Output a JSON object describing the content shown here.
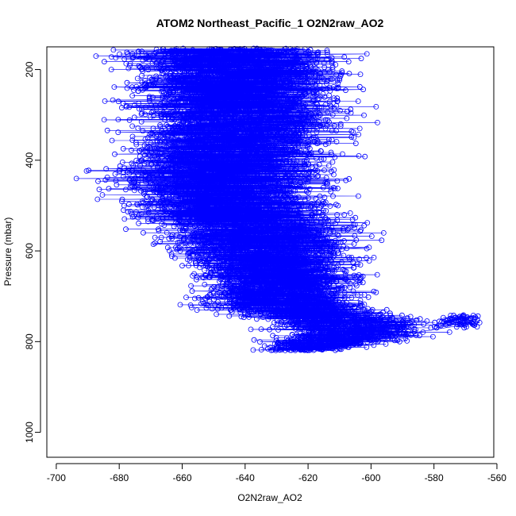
{
  "chart_data": {
    "type": "scatter",
    "title": "ATOM2 Northeast_Pacific_1 O2N2raw_AO2",
    "xlabel": "O2N2raw_AO2",
    "ylabel": "Pressure (mbar)",
    "xlim": [
      -703,
      -561
    ],
    "ylim": [
      1055,
      150
    ],
    "y_reversed": true,
    "x_ticks": [
      "-700",
      "-680",
      "-660",
      "-640",
      "-620",
      "-600",
      "-580",
      "-560"
    ],
    "y_ticks": [
      "200",
      "400",
      "600",
      "800",
      "1000"
    ],
    "grid": false,
    "legend": "none",
    "marker": "open circle",
    "connected_by_lines": true,
    "series_color": "#0000ff",
    "series": [
      {
        "points_per_level": 34,
        "level_spacing_mbar": 3,
        "profile": [
          {
            "p": 155,
            "x_min": -693,
            "x_max": -598
          },
          {
            "p": 250,
            "x_min": -690,
            "x_max": -594
          },
          {
            "p": 350,
            "x_min": -688,
            "x_max": -596
          },
          {
            "p": 430,
            "x_min": -697,
            "x_max": -600
          },
          {
            "p": 500,
            "x_min": -690,
            "x_max": -598
          },
          {
            "p": 560,
            "x_min": -680,
            "x_max": -592
          },
          {
            "p": 620,
            "x_min": -672,
            "x_max": -592
          },
          {
            "p": 680,
            "x_min": -660,
            "x_max": -596
          },
          {
            "p": 720,
            "x_min": -668,
            "x_max": -589
          },
          {
            "p": 760,
            "x_min": -642,
            "x_max": -570
          },
          {
            "p": 790,
            "x_min": -640,
            "x_max": -575
          },
          {
            "p": 820,
            "x_min": -640,
            "x_max": -605
          }
        ],
        "secondary_cluster": {
          "p_min": 740,
          "p_max": 770,
          "x_min": -580,
          "x_max": -565
        }
      }
    ]
  }
}
